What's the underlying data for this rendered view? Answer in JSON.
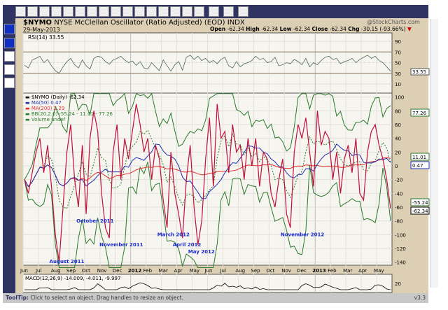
{
  "header": {
    "symbol": "$NYMO",
    "name": "NYSE McClellan Oscillator (Ratio Adjusted) (EOD)",
    "exchange": "INDX",
    "date": "29-May-2013",
    "watermark": "@StockCharts.com",
    "ohlc": {
      "open_label": "Open",
      "open": "-62.34",
      "high_label": "High",
      "high": "-62.34",
      "low_label": "Low",
      "low": "-62.34",
      "close_label": "Close",
      "close": "-62.34",
      "chg_label": "Chg",
      "chg": "-30.15 (-93.66%)"
    }
  },
  "toolbar": {
    "tools": [
      "pointer",
      "line",
      "horizontal-line",
      "vertical-line",
      "rectangle",
      "circle",
      "text",
      "callout",
      "arrow",
      "fib-lines",
      "time-lines",
      "channel",
      "trend",
      "ma-line",
      "cycle",
      "back",
      "forward",
      "undo",
      "settings"
    ]
  },
  "rsi": {
    "label": "RSI(14) 33.55",
    "ticks": [
      90,
      70,
      50,
      30,
      10
    ],
    "value_tag": "33.55",
    "values": [
      45,
      40,
      55,
      58,
      62,
      50,
      56,
      44,
      35,
      30,
      42,
      52,
      58,
      46,
      40,
      55,
      44,
      38,
      58,
      62,
      60,
      52,
      47,
      55,
      58,
      62,
      55,
      50,
      53,
      45,
      52,
      40,
      38,
      50,
      42,
      35,
      55,
      44,
      34,
      46,
      52,
      36,
      60,
      64,
      56,
      62,
      54,
      58,
      50,
      54,
      48,
      56,
      60,
      44,
      40,
      52,
      42,
      48,
      50,
      54,
      62,
      56,
      58,
      50,
      52,
      60,
      44,
      46,
      50,
      48,
      56,
      52,
      46,
      58,
      42,
      50,
      46,
      54,
      60,
      62,
      56,
      58,
      48,
      52,
      54,
      58,
      50,
      56,
      60,
      64,
      58,
      62,
      54,
      50,
      42,
      34
    ]
  },
  "main": {
    "legend": [
      "$NYMO (Daily) -62.34",
      "MA(50) 0.47",
      "MA(200) 2.29",
      "BB(20,2.0) -55.24 - 11.01 - 77.26",
      "Volume undef"
    ],
    "ticks": [
      100,
      80,
      60,
      40,
      20,
      0,
      -20,
      -40,
      -60,
      -80,
      -100,
      -120,
      -140
    ],
    "ylim": [
      -150,
      105
    ],
    "tags": {
      "bb_upper": "77.26",
      "bb_mid": "11.01",
      "ma50": "0.47",
      "bb_lower": "-55.24",
      "close": "-62.34"
    },
    "colors": {
      "price": "#c0103a",
      "ma50": "#2030b0",
      "ma200": "#e03030",
      "bb": "#2a7a2a"
    },
    "nymo": [
      -20,
      -40,
      -10,
      20,
      40,
      -10,
      30,
      -30,
      -100,
      -140,
      -60,
      20,
      60,
      -20,
      -60,
      30,
      -70,
      40,
      80,
      50,
      -40,
      -90,
      -105,
      20,
      60,
      -20,
      40,
      10,
      50,
      90,
      60,
      20,
      40,
      -20,
      30,
      10,
      -50,
      -90,
      20,
      -40,
      -70,
      -105,
      -20,
      30,
      -60,
      -115,
      -80,
      10,
      70,
      -30,
      90,
      40,
      50,
      -10,
      60,
      20,
      30,
      -20,
      40,
      0,
      40,
      -30,
      20,
      10,
      -40,
      -60,
      -20,
      10,
      -70,
      -90,
      20,
      60,
      40,
      70,
      20,
      -30,
      80,
      30,
      50,
      40,
      -20,
      20,
      -40,
      10,
      30,
      -10,
      40,
      -40,
      -50,
      20,
      50,
      60,
      30,
      10,
      -20,
      -62
    ],
    "annotations": [
      {
        "text": "August 2011",
        "i": 9
      },
      {
        "text": "October 2011",
        "i": 16
      },
      {
        "text": "November 2011",
        "i": 22
      },
      {
        "text": "March 2012",
        "i": 37
      },
      {
        "text": "April 2012",
        "i": 41
      },
      {
        "text": "May 2012",
        "i": 45
      },
      {
        "text": "November 2012",
        "i": 69
      }
    ],
    "months": [
      "Jun",
      "Jul",
      "Aug",
      "Sep",
      "Oct",
      "Nov",
      "Dec",
      "2012",
      "Feb",
      "Mar",
      "Apr",
      "May",
      "Jun",
      "Jul",
      "Aug",
      "Sep",
      "Oct",
      "Nov",
      "Dec",
      "2013",
      "Feb",
      "Mar",
      "Apr",
      "May"
    ]
  },
  "macd": {
    "label": "MACD(12,26,9) -14.009, -4.011, -9.997",
    "tick": "20"
  },
  "status": {
    "label": "ToolTip:",
    "text": "Click to select an object. Drag handles to resize an object.",
    "version": "v3.3"
  }
}
